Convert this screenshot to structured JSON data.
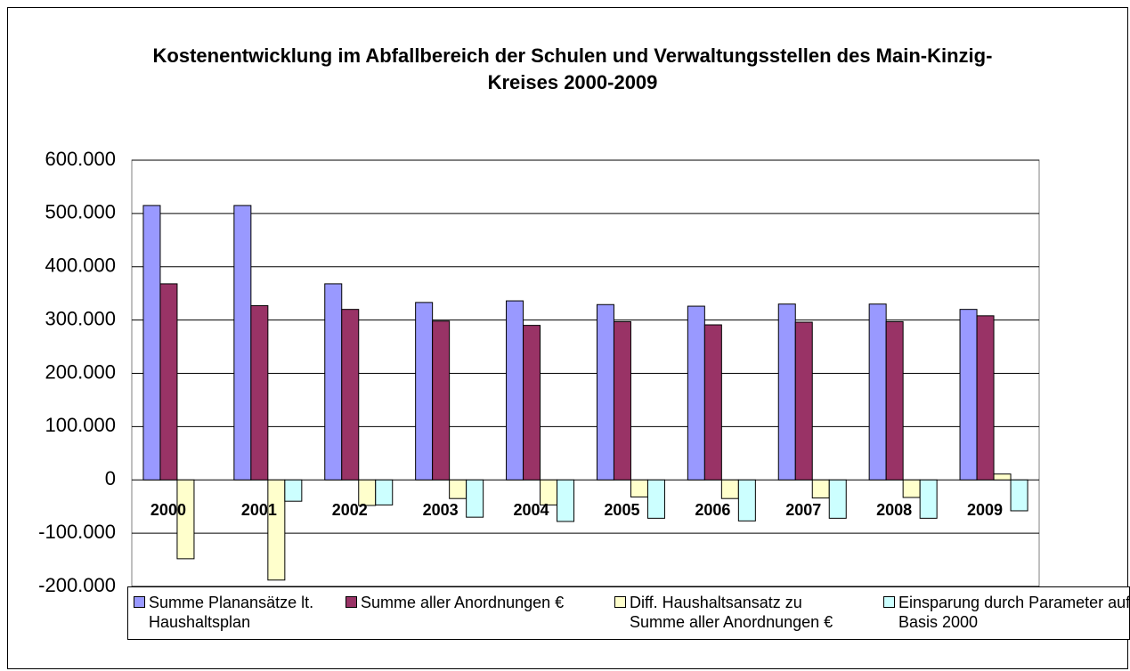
{
  "chart_data": {
    "type": "bar",
    "title": "Kostenentwicklung im Abfallbereich der Schulen und Verwaltungsstellen des Main-Kinzig-Kreises 2000-2009",
    "categories": [
      "2000",
      "2001",
      "2002",
      "2003",
      "2004",
      "2005",
      "2006",
      "2007",
      "2008",
      "2009"
    ],
    "series": [
      {
        "name": "Summe Planansätze lt. Haushaltsplan",
        "color": "#9999ff",
        "values": [
          515000,
          515000,
          368000,
          333000,
          336000,
          329000,
          326000,
          330000,
          330000,
          320000
        ]
      },
      {
        "name": "Summe aller Anordnungen €",
        "color": "#993366",
        "values": [
          368000,
          327000,
          320000,
          298000,
          290000,
          297000,
          291000,
          296000,
          297000,
          308000
        ]
      },
      {
        "name": "Diff. Haushaltsansatz zu Summe aller Anordnungen €",
        "color": "#ffffcc",
        "values": [
          -148000,
          -188000,
          -48000,
          -35000,
          -47000,
          -32000,
          -35000,
          -34000,
          -33000,
          11000
        ]
      },
      {
        "name": "Einsparung durch Parameter auf Basis 2000",
        "color": "#ccffff",
        "values": [
          0,
          -40000,
          -47000,
          -70000,
          -78000,
          -72000,
          -77000,
          -72000,
          -72000,
          -58000
        ]
      }
    ],
    "ylim": [
      -200000,
      600000
    ],
    "yticks": [
      {
        "value": -200000,
        "label": "-200.000"
      },
      {
        "value": -100000,
        "label": "-100.000"
      },
      0,
      {
        "value": 100000,
        "label": "100.000"
      },
      {
        "value": 200000,
        "label": "200.000"
      },
      {
        "value": 300000,
        "label": "300.000"
      },
      {
        "value": 400000,
        "label": "400.000"
      },
      {
        "value": 500000,
        "label": "500.000"
      },
      {
        "value": 600000,
        "label": "600.000"
      }
    ],
    "grid": true,
    "legend": "bottom"
  }
}
